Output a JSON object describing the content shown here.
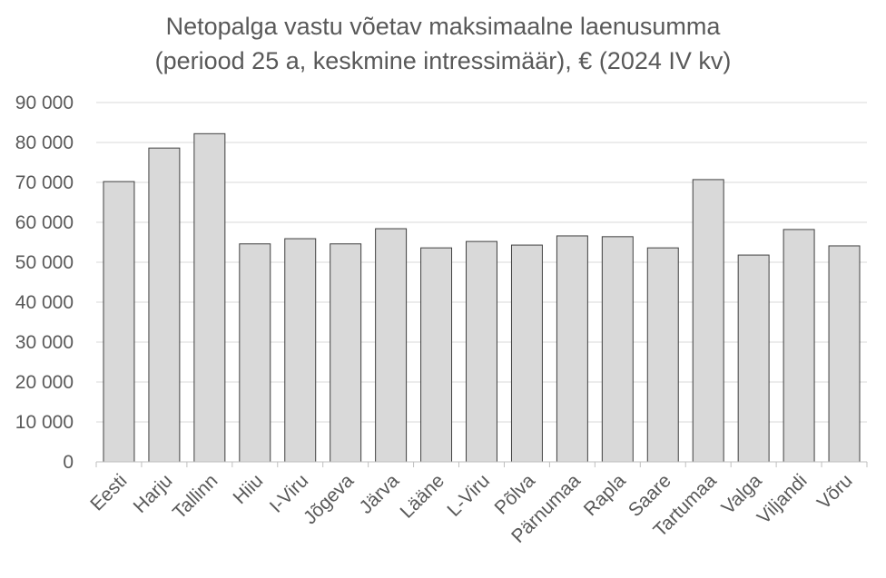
{
  "chart_data": {
    "type": "bar",
    "title_line1": "Netopalga vastu võetav maksimaalne laenusumma",
    "title_line2": "(periood 25 a, keskmine intressimäär), € (2024 IV kv)",
    "categories": [
      "Eesti",
      "Harju",
      "Tallinn",
      "Hiiu",
      "I-Viru",
      "Jõgeva",
      "Järva",
      "Lääne",
      "L-Viru",
      "Põlva",
      "Pärnumaa",
      "Rapla",
      "Saare",
      "Tartumaa",
      "Valga",
      "Viljandi",
      "Võru"
    ],
    "values": [
      70200,
      78600,
      82200,
      54600,
      55900,
      54600,
      58400,
      53600,
      55200,
      54300,
      56600,
      56400,
      53600,
      70700,
      51800,
      58200,
      54100
    ],
    "ylim": [
      0,
      90000
    ],
    "yticks": [
      0,
      10000,
      20000,
      30000,
      40000,
      50000,
      60000,
      70000,
      80000,
      90000
    ],
    "ytick_labels": [
      "0",
      "10 000",
      "20 000",
      "30 000",
      "40 000",
      "50 000",
      "60 000",
      "70 000",
      "80 000",
      "90 000"
    ],
    "grid": true,
    "colors": {
      "bar_fill": "#d9d9d9",
      "bar_stroke": "#404040",
      "grid": "#d9d9d9",
      "text": "#595959"
    }
  }
}
